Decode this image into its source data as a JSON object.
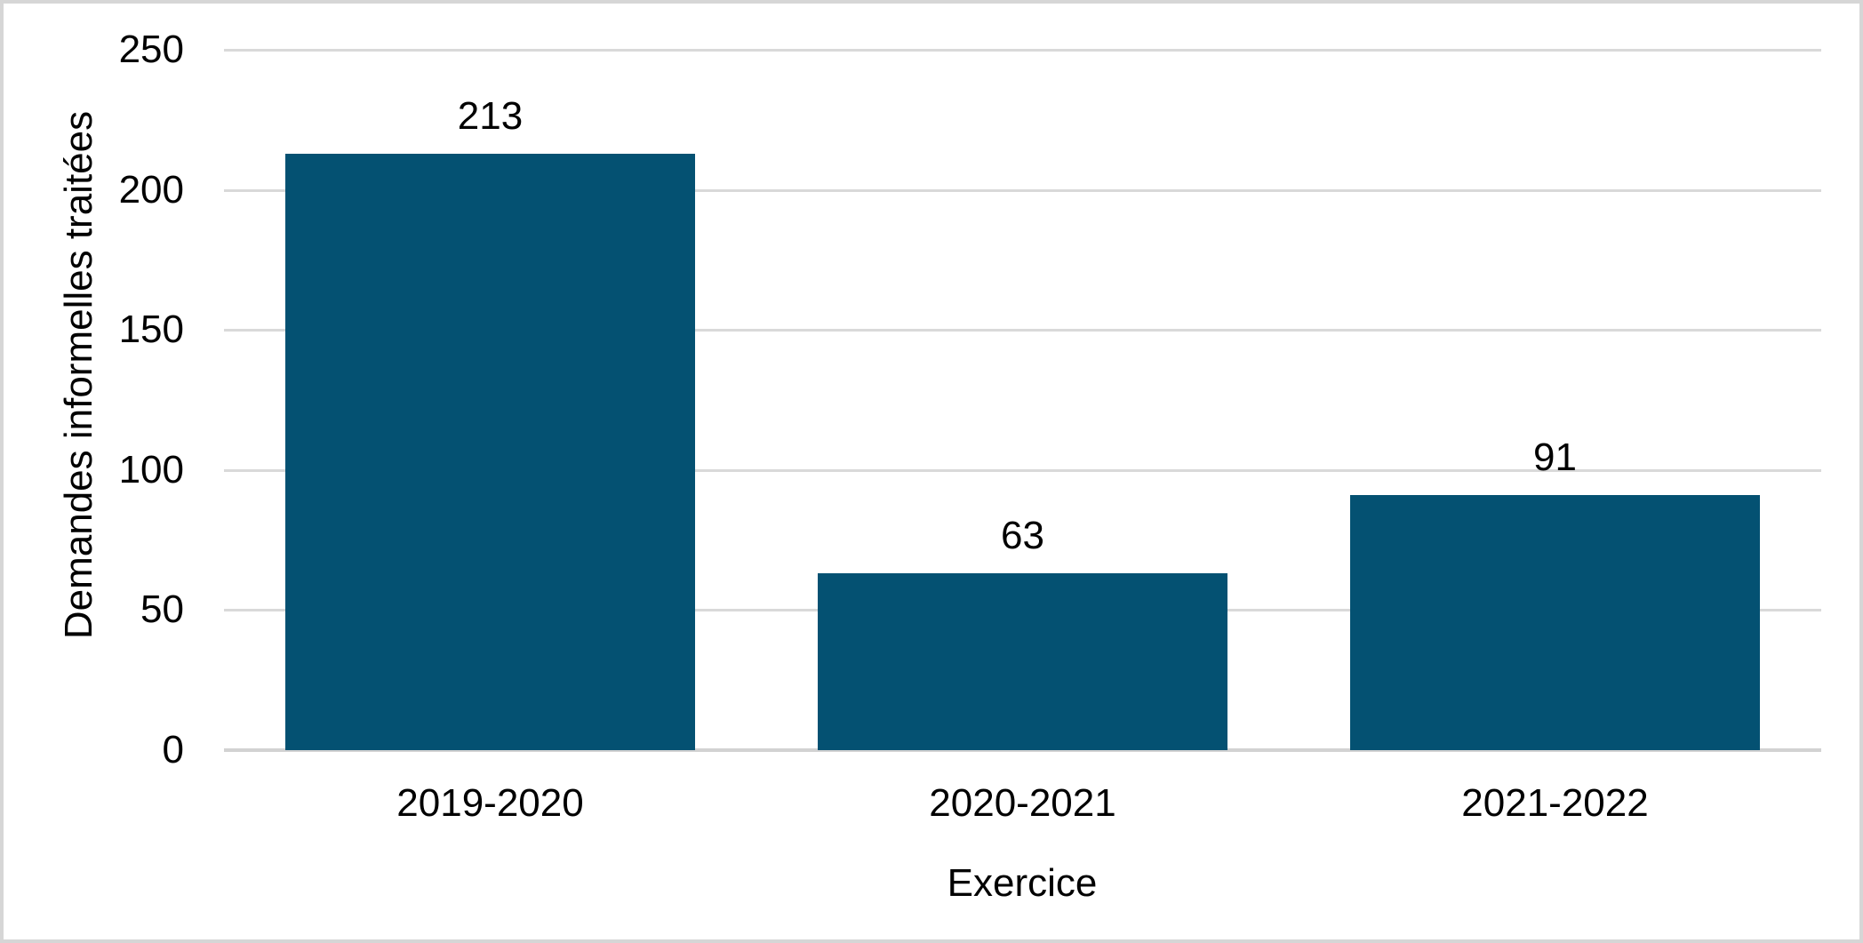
{
  "chart_data": {
    "type": "bar",
    "title": "",
    "xlabel": "Exercice",
    "ylabel": "Demandes informelles traitées",
    "categories": [
      "2019-2020",
      "2020-2021",
      "2021-2022"
    ],
    "values": [
      213,
      63,
      91
    ],
    "data_labels": [
      "213",
      "63",
      "91"
    ],
    "ylim": [
      0,
      250
    ],
    "yticks": [
      0,
      50,
      100,
      150,
      200,
      250
    ],
    "ytick_labels": [
      "0",
      "50",
      "100",
      "150",
      "200",
      "250"
    ],
    "grid": true,
    "legend": "none",
    "bar_color": "#045172"
  },
  "styles": {
    "background": "#FFFFFF",
    "grid_color": "#D9D9D9",
    "axis_line_color": "#D2D2D2",
    "text_color": "#000000",
    "frame_border_color": "#D6D6D6"
  }
}
